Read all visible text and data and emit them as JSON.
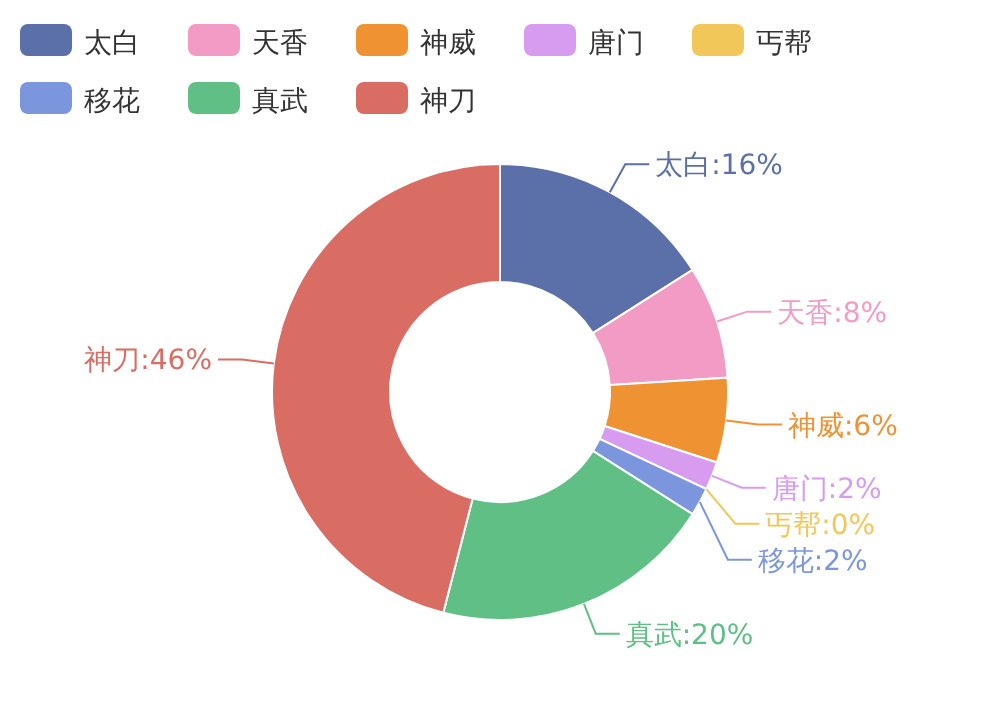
{
  "chart_data": {
    "type": "donut",
    "categories": [
      "太白",
      "天香",
      "神威",
      "唐门",
      "丐帮",
      "移花",
      "真武",
      "神刀"
    ],
    "values": [
      16,
      8,
      6,
      2,
      0,
      2,
      20,
      46
    ],
    "colors": [
      "#5b6fa8",
      "#f29bc4",
      "#ef9232",
      "#d79cf0",
      "#f2c75a",
      "#7b96dc",
      "#5fbf85",
      "#d96c63"
    ],
    "value_labels": [
      "太白:16%",
      "天香:8%",
      "神威:6%",
      "唐门:2%",
      "丐帮:0%",
      "移花:2%",
      "真武:20%",
      "神刀:46%"
    ],
    "legend": "top"
  }
}
